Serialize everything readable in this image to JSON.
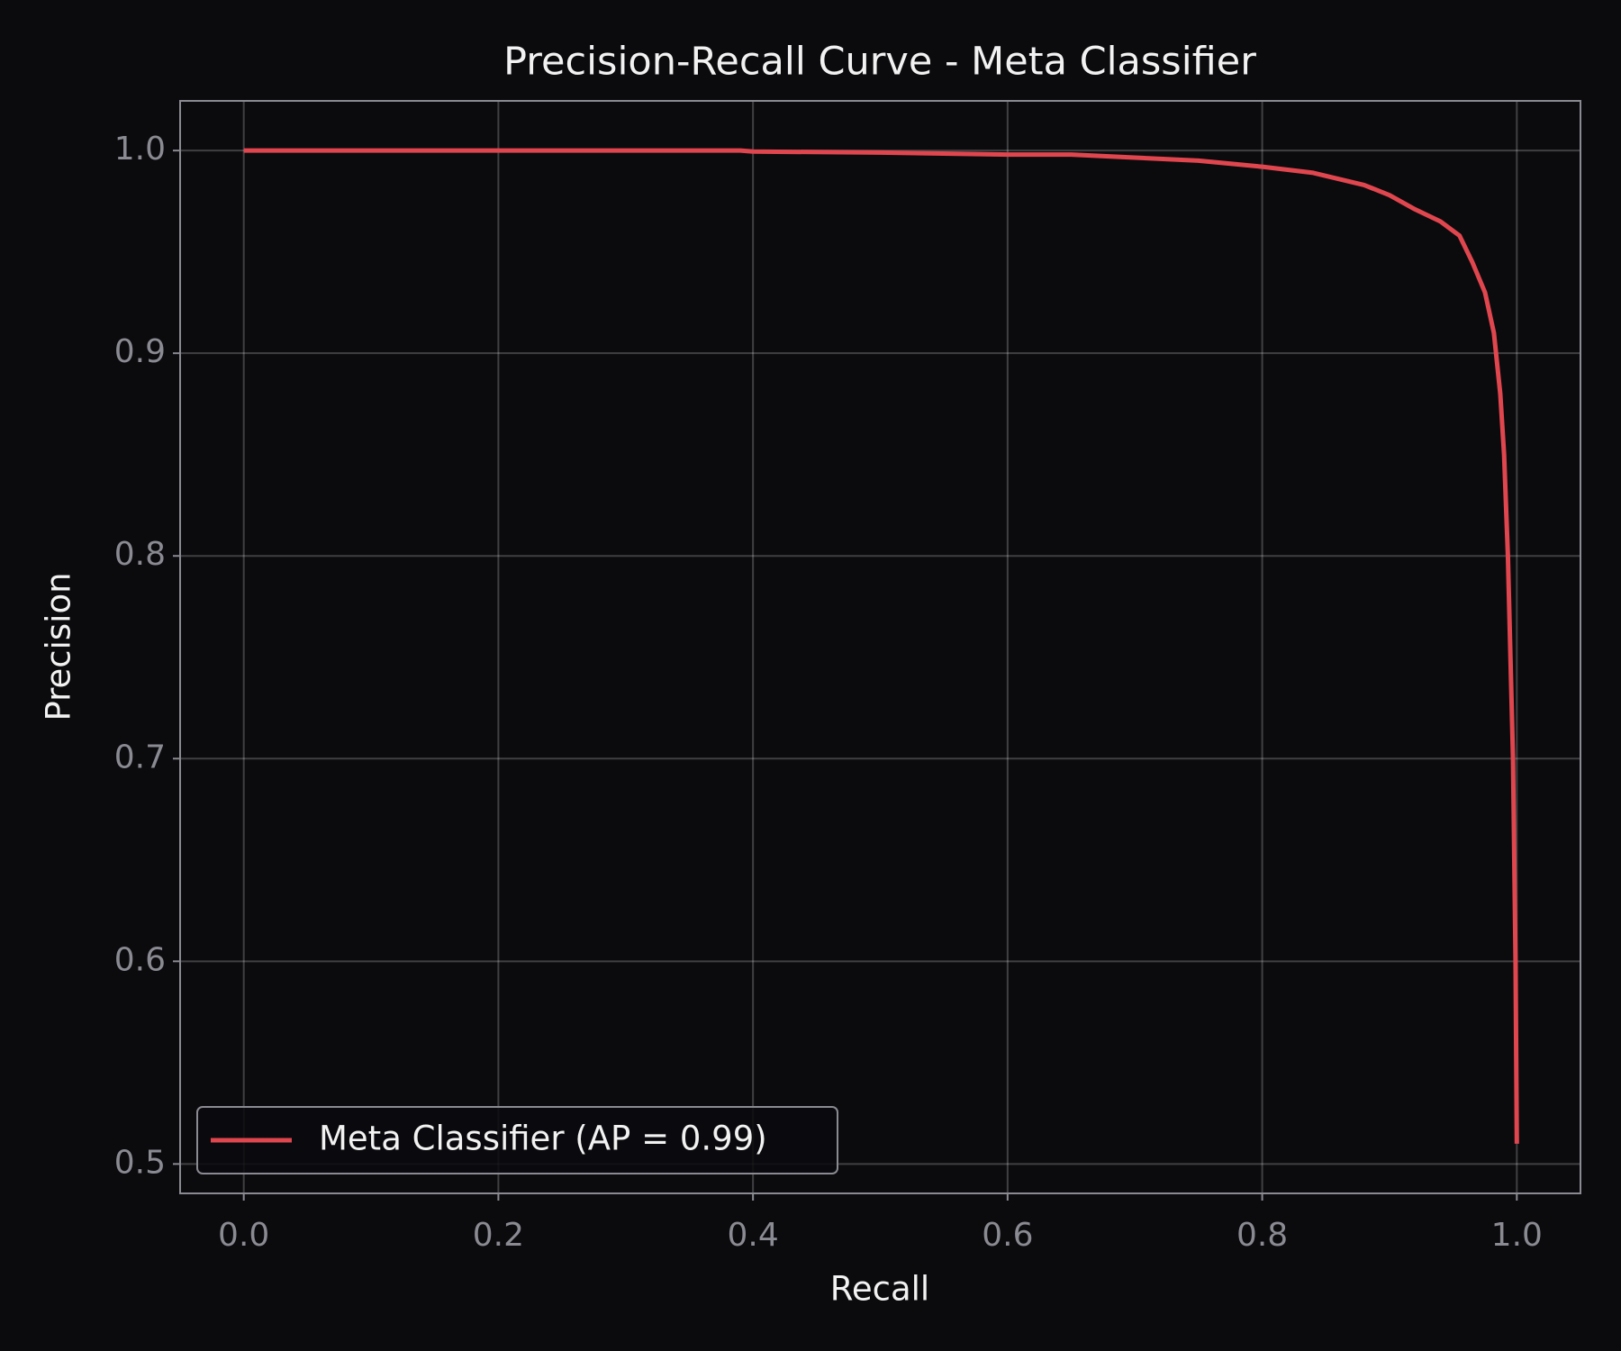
{
  "chart_data": {
    "type": "line",
    "title": "Precision-Recall Curve - Meta Classifier",
    "x_label": "Recall",
    "y_label": "Precision",
    "series": [
      {
        "name": "Meta Classifier (AP = 0.99)",
        "color": "#e0464e",
        "x": [
          0,
          0.39,
          0.4,
          0.5,
          0.6,
          0.65,
          0.7,
          0.75,
          0.8,
          0.84,
          0.86,
          0.88,
          0.9,
          0.92,
          0.94,
          0.955,
          0.965,
          0.975,
          0.982,
          0.987,
          0.99,
          0.993,
          0.995,
          0.997,
          0.998,
          0.999,
          1.0
        ],
        "values": [
          1.0,
          1.0,
          0.9995,
          0.999,
          0.998,
          0.998,
          0.9965,
          0.995,
          0.992,
          0.989,
          0.986,
          0.983,
          0.978,
          0.971,
          0.965,
          0.958,
          0.945,
          0.93,
          0.91,
          0.88,
          0.85,
          0.8,
          0.75,
          0.7,
          0.65,
          0.6,
          0.51
        ]
      }
    ],
    "xlim": [
      -0.05,
      1.05
    ],
    "ylim": [
      0.4855,
      1.0245
    ],
    "xticks": [
      {
        "value": 0,
        "label": "0.0"
      },
      0.2,
      0.4,
      0.6,
      0.8,
      {
        "value": 1,
        "label": "1.0"
      }
    ],
    "yticks": [
      0.5,
      0.6,
      0.7,
      0.8,
      0.9,
      {
        "value": 1,
        "label": "1.0"
      }
    ],
    "grid": true,
    "legend": "lower left"
  }
}
